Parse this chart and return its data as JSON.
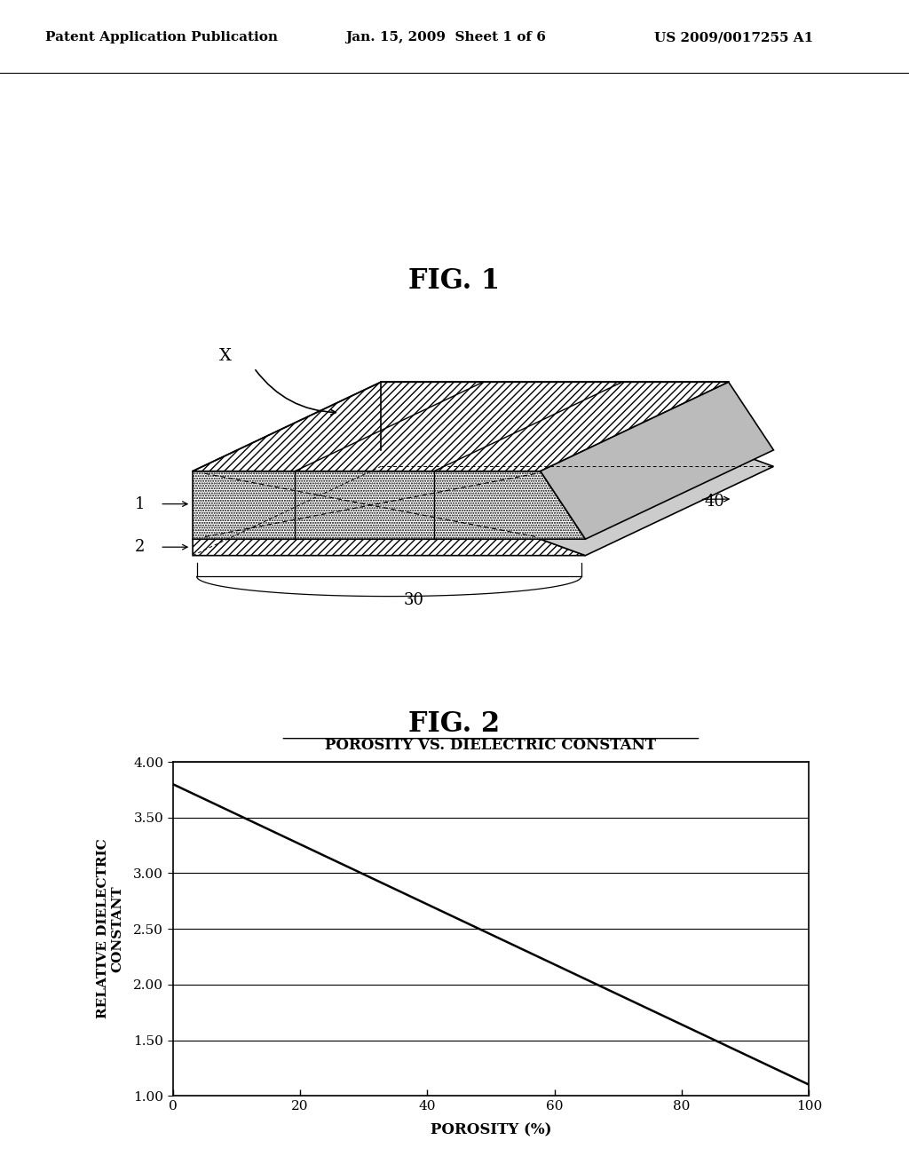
{
  "header_left": "Patent Application Publication",
  "header_mid": "Jan. 15, 2009  Sheet 1 of 6",
  "header_right": "US 2009/0017255 A1",
  "fig1_title": "FIG. 1",
  "fig2_title": "FIG. 2",
  "graph_title": "POROSITY VS. DIELECTRIC CONSTANT",
  "xlabel": "POROSITY (%)",
  "ylabel_line1": "RELATIVE DIELECTRIC",
  "ylabel_line2": "CONSTANT",
  "x_ticks": [
    0,
    20,
    40,
    60,
    80,
    100
  ],
  "y_ticks": [
    1.0,
    1.5,
    2.0,
    2.5,
    3.0,
    3.5,
    4.0
  ],
  "xlim": [
    0,
    100
  ],
  "ylim": [
    1.0,
    4.0
  ],
  "line_x": [
    0,
    100
  ],
  "line_y": [
    3.8,
    1.1
  ],
  "bg_color": "#ffffff",
  "line_color": "#000000",
  "label_1": "1",
  "label_2": "2",
  "label_30": "30",
  "label_40": "40",
  "label_X": "X"
}
